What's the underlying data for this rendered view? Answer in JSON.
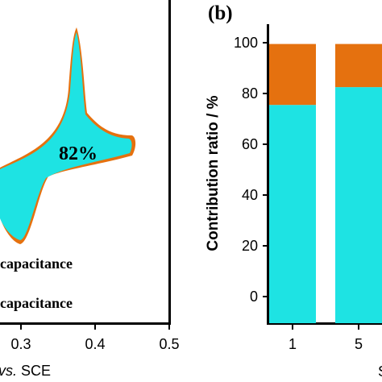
{
  "colors": {
    "inner": "#1ee3e3",
    "outer": "#e5710f",
    "axis": "#000000"
  },
  "chart_data": [
    {
      "type": "area",
      "panel": "a",
      "xlabel_prefix": "",
      "xlabel_italic": "vs.",
      "xlabel_suffix": "SCE",
      "xticks": [
        "0.3",
        "0.4",
        "0.5"
      ],
      "xlim_visible": [
        0.2,
        0.5
      ],
      "annotation": "82%",
      "legend": [
        "capacitance",
        "capacitance"
      ],
      "curve_x_range": [
        0.2,
        0.45
      ],
      "peak_anodic_x": 0.365,
      "peak_cathodic_x": 0.275
    },
    {
      "type": "bar",
      "panel": "b",
      "panel_label": "(b)",
      "ylabel": "Contribution ratio / %",
      "yticks": [
        "0",
        "20",
        "40",
        "60",
        "80",
        "100"
      ],
      "ylim": [
        -10,
        105
      ],
      "categories": [
        "1",
        "5"
      ],
      "series": [
        {
          "values": [
            75.5,
            82.5
          ]
        },
        {
          "values": [
            24,
            17
          ]
        }
      ],
      "xlabel_partial": "S"
    }
  ]
}
